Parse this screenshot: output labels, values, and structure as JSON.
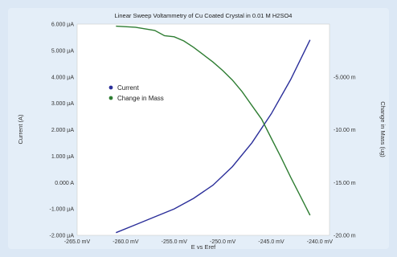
{
  "chart_data": {
    "type": "line",
    "title": "Linear Sweep Voltammetry of Cu Coated Crystal in 0.01 M H2SO4",
    "xlabel": "E vs Eref",
    "ylabel_left": "Current (A)",
    "ylabel_right": "Change in Mass (ug)",
    "xlim": [
      -265,
      -239
    ],
    "ylim_left": [
      -2.0,
      6.0
    ],
    "ylim_right": [
      -20.0,
      0
    ],
    "x_ticks": [
      {
        "value": -265,
        "label": "-265.0 mV"
      },
      {
        "value": -260,
        "label": "-260.0 mV"
      },
      {
        "value": -255,
        "label": "-255.0 mV"
      },
      {
        "value": -250,
        "label": "-250.0 mV"
      },
      {
        "value": -245,
        "label": "-245.0 mV"
      },
      {
        "value": -240,
        "label": "-240.0 mV"
      }
    ],
    "y_ticks_left": [
      {
        "value": 6,
        "label": "6.000 µA"
      },
      {
        "value": 5,
        "label": "5.000 µA"
      },
      {
        "value": 4,
        "label": "4.000 µA"
      },
      {
        "value": 3,
        "label": "3.000 µA"
      },
      {
        "value": 2,
        "label": "2.000 µA"
      },
      {
        "value": 1,
        "label": "1.000 µA"
      },
      {
        "value": 0,
        "label": "0.000 A"
      },
      {
        "value": -1,
        "label": "-1.000 µA"
      },
      {
        "value": -2,
        "label": "-2.000 µA"
      }
    ],
    "y_ticks_right": [
      {
        "value": -5,
        "label": "-5.000 m"
      },
      {
        "value": -10,
        "label": "-10.00 m"
      },
      {
        "value": -15,
        "label": "-15.00 m"
      },
      {
        "value": -20,
        "label": "-20.00 m"
      }
    ],
    "legend_position": "left-center",
    "grid": false,
    "series": [
      {
        "name": "Current",
        "axis": "left",
        "color": "#2b2f9a",
        "x": [
          -261,
          -259,
          -257,
          -255,
          -253,
          -251,
          -249,
          -247,
          -245,
          -243,
          -241
        ],
        "y": [
          -1.9,
          -1.6,
          -1.3,
          -1.0,
          -0.6,
          -0.1,
          0.6,
          1.5,
          2.6,
          3.9,
          5.4
        ]
      },
      {
        "name": "Change in Mass",
        "axis": "right",
        "color": "#2e7d32",
        "x": [
          -261,
          -259,
          -257,
          -256,
          -255,
          -254,
          -253,
          -252,
          -251,
          -250,
          -249,
          -248,
          -247,
          -246,
          -245,
          -244,
          -243,
          -242,
          -241
        ],
        "y": [
          -0.2,
          -0.3,
          -0.6,
          -1.1,
          -1.2,
          -1.6,
          -2.2,
          -2.9,
          -3.6,
          -4.4,
          -5.3,
          -6.4,
          -7.7,
          -9.0,
          -10.8,
          -12.6,
          -14.5,
          -16.3,
          -18.1
        ]
      }
    ]
  }
}
